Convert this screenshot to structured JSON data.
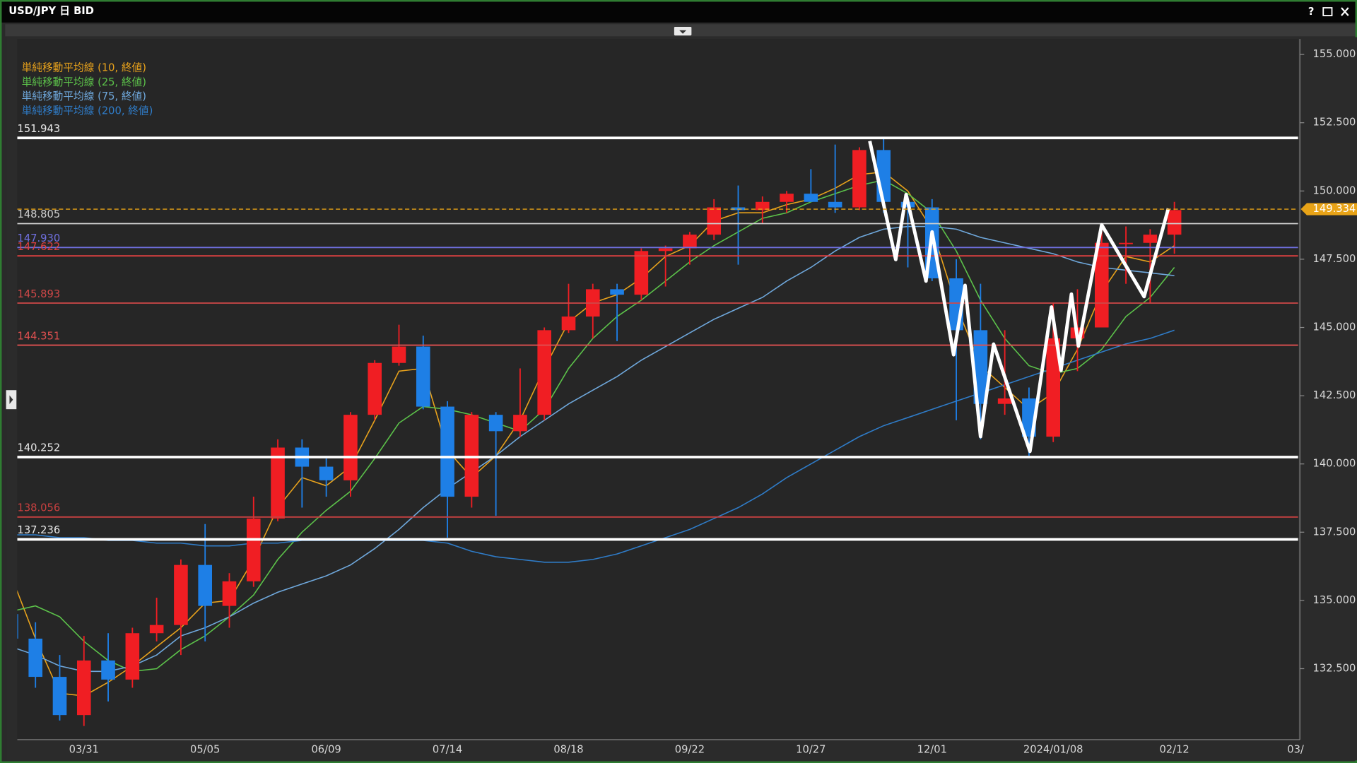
{
  "window": {
    "title": "USD/JPY 日 BID",
    "help": "?"
  },
  "chart_data": {
    "type": "candlestick",
    "categories": [
      null,
      null,
      null,
      "03/31",
      null,
      null,
      null,
      null,
      "05/05",
      null,
      null,
      null,
      null,
      "06/09",
      null,
      null,
      null,
      null,
      "07/14",
      null,
      null,
      null,
      null,
      "08/18",
      null,
      null,
      null,
      null,
      "09/22",
      null,
      null,
      null,
      null,
      "10/27",
      null,
      null,
      null,
      null,
      "12/01",
      null,
      null,
      null,
      null,
      "2024/01/08",
      null,
      null,
      null,
      null,
      "02/12",
      null,
      null,
      null,
      null,
      "03/"
    ],
    "open": [
      134.5,
      133.6,
      132.2,
      130.8,
      132.8,
      132.1,
      133.8,
      134.1,
      136.3,
      134.8,
      135.7,
      138.0,
      140.6,
      139.9,
      139.4,
      141.8,
      143.7,
      144.3,
      142.1,
      138.8,
      141.8,
      141.2,
      141.8,
      144.9,
      145.4,
      146.4,
      146.2,
      147.8,
      147.9,
      148.4,
      149.4,
      149.3,
      149.6,
      149.9,
      149.6,
      149.4,
      151.5,
      149.6,
      149.4,
      146.8,
      144.9,
      142.2,
      142.4,
      141.0,
      144.6,
      145.0,
      148.1,
      148.1,
      148.4,
      null,
      null,
      null,
      null,
      null
    ],
    "high": [
      135.0,
      134.2,
      133.0,
      133.7,
      133.8,
      134.0,
      135.1,
      136.5,
      137.8,
      136.0,
      138.8,
      140.9,
      140.9,
      140.2,
      141.9,
      143.8,
      145.1,
      144.7,
      142.3,
      141.9,
      141.9,
      143.5,
      145.0,
      146.6,
      146.6,
      146.6,
      147.9,
      148.0,
      148.5,
      149.7,
      150.2,
      149.8,
      150.0,
      150.8,
      151.7,
      151.6,
      151.9,
      149.8,
      149.7,
      147.5,
      146.6,
      144.9,
      142.8,
      145.9,
      146.4,
      148.8,
      148.7,
      148.6,
      149.6,
      null,
      null,
      null,
      null,
      null
    ],
    "low": [
      133.0,
      131.8,
      130.6,
      130.4,
      131.3,
      131.8,
      133.5,
      133.0,
      133.5,
      134.0,
      135.5,
      137.9,
      138.4,
      138.8,
      138.8,
      141.6,
      143.6,
      142.0,
      137.3,
      138.4,
      138.1,
      141.0,
      141.6,
      144.8,
      144.6,
      144.5,
      146.0,
      146.5,
      147.3,
      148.2,
      147.3,
      148.8,
      149.2,
      149.6,
      149.2,
      149.3,
      149.2,
      147.2,
      146.7,
      141.6,
      140.9,
      141.8,
      140.3,
      140.8,
      143.4,
      145.0,
      146.6,
      145.9,
      147.7,
      null,
      null,
      null,
      null,
      null
    ],
    "close": [
      133.6,
      132.2,
      130.8,
      132.8,
      132.1,
      133.8,
      134.1,
      136.3,
      134.8,
      135.7,
      138.0,
      140.6,
      139.9,
      139.4,
      141.8,
      143.7,
      144.3,
      142.1,
      138.8,
      141.8,
      141.2,
      141.8,
      144.9,
      145.4,
      146.4,
      146.2,
      147.8,
      147.9,
      148.4,
      149.4,
      149.3,
      149.6,
      149.9,
      149.6,
      149.4,
      151.5,
      149.6,
      149.4,
      146.8,
      144.9,
      142.2,
      142.4,
      141.0,
      144.6,
      145.0,
      148.1,
      148.1,
      148.4,
      149.3,
      null,
      null,
      null,
      null,
      null
    ],
    "up_color": "#f01e23",
    "down_color": "#1e7fe6",
    "series": [
      {
        "name": "単純移動平均線 (10, 終値)",
        "color": "#e8a21c",
        "values": [
          135.9,
          133.6,
          131.6,
          131.5,
          132.0,
          132.6,
          133.3,
          134.0,
          134.9,
          135.0,
          136.5,
          138.4,
          139.5,
          139.2,
          139.9,
          141.6,
          143.4,
          143.5,
          140.5,
          139.5,
          140.3,
          141.6,
          143.5,
          145.2,
          145.9,
          146.2,
          146.8,
          147.6,
          148.0,
          148.9,
          149.2,
          149.2,
          149.5,
          149.7,
          150.1,
          150.6,
          150.7,
          150.0,
          148.6,
          145.8,
          143.6,
          142.8,
          142.0,
          142.6,
          144.2,
          146.3,
          147.6,
          147.4,
          148.0,
          null,
          null,
          null,
          null,
          null
        ]
      },
      {
        "name": "単純移動平均線 (25, 終値)",
        "color": "#5cc24a",
        "values": [
          134.6,
          134.8,
          134.4,
          133.5,
          132.8,
          132.4,
          132.5,
          133.2,
          133.7,
          134.4,
          135.2,
          136.5,
          137.5,
          138.3,
          139.0,
          140.2,
          141.5,
          142.1,
          142.0,
          141.8,
          141.5,
          141.2,
          142.0,
          143.5,
          144.6,
          145.4,
          146.0,
          146.7,
          147.4,
          148.0,
          148.5,
          149.0,
          149.2,
          149.6,
          149.9,
          150.2,
          150.4,
          149.9,
          149.2,
          147.8,
          146.0,
          144.6,
          143.6,
          143.3,
          143.5,
          144.2,
          145.4,
          146.1,
          147.2,
          null,
          null,
          null,
          null,
          null
        ]
      },
      {
        "name": "単純移動平均線 (75, 終値)",
        "color": "#6fa8dc",
        "values": [
          133.3,
          133.0,
          132.6,
          132.4,
          132.4,
          132.6,
          133.0,
          133.7,
          134.0,
          134.4,
          134.9,
          135.3,
          135.6,
          135.9,
          136.3,
          136.9,
          137.6,
          138.4,
          139.1,
          139.7,
          140.3,
          141.0,
          141.6,
          142.2,
          142.7,
          143.2,
          143.8,
          144.3,
          144.8,
          145.3,
          145.7,
          146.1,
          146.7,
          147.2,
          147.8,
          148.3,
          148.6,
          148.7,
          148.7,
          148.6,
          148.3,
          148.1,
          147.9,
          147.7,
          147.4,
          147.2,
          147.1,
          147.0,
          146.9,
          null,
          null,
          null,
          null,
          null
        ]
      },
      {
        "name": "単純移動平均線 (200, 終値)",
        "color": "#2f7cc8",
        "values": [
          137.4,
          137.4,
          137.3,
          137.3,
          137.2,
          137.2,
          137.1,
          137.1,
          137.0,
          137.0,
          137.1,
          137.1,
          137.2,
          137.2,
          137.2,
          137.2,
          137.2,
          137.2,
          137.1,
          136.8,
          136.6,
          136.5,
          136.4,
          136.4,
          136.5,
          136.7,
          137.0,
          137.3,
          137.6,
          138.0,
          138.4,
          138.9,
          139.5,
          140.0,
          140.5,
          141.0,
          141.4,
          141.7,
          142.0,
          142.3,
          142.6,
          142.9,
          143.2,
          143.5,
          143.8,
          144.1,
          144.4,
          144.6,
          144.9,
          null,
          null,
          null,
          null,
          null
        ]
      }
    ],
    "levels": [
      {
        "value": 151.943,
        "color": "#ffffff"
      },
      {
        "value": 148.805,
        "color": "#d0d0d0"
      },
      {
        "value": 147.93,
        "label": "147.930",
        "color": "#7070e0"
      },
      {
        "value": 147.622,
        "color": "#e04040"
      },
      {
        "value": 145.893,
        "color": "#d04848"
      },
      {
        "value": 144.351,
        "color": "#e05050"
      },
      {
        "value": 140.252,
        "color": "#ffffff"
      },
      {
        "value": 138.056,
        "color": "#c84040"
      },
      {
        "value": 137.236,
        "color": "#ffffff"
      }
    ],
    "last_price": 149.334,
    "last_price_color": "#e8a317",
    "drawing": {
      "color": "#ffffff",
      "x": [
        35.43,
        36.5,
        36.93,
        37.75,
        38.0,
        38.89,
        39.36,
        40.0,
        40.54,
        42.04,
        42.93,
        43.32,
        43.75,
        44.04,
        45.0,
        46.75,
        47.75
      ],
      "y": [
        151.83,
        147.49,
        149.87,
        146.7,
        148.5,
        144.0,
        146.54,
        141.0,
        144.39,
        140.46,
        145.75,
        143.43,
        146.22,
        144.32,
        148.76,
        146.13,
        149.36
      ]
    },
    "ylim": [
      129.9,
      155.57
    ],
    "yticks": [
      {
        "value": 132.5,
        "label": "132.500"
      },
      {
        "value": 135,
        "label": "135.000"
      },
      {
        "value": 137.5,
        "label": "137.500"
      },
      {
        "value": 140,
        "label": "140.000"
      },
      {
        "value": 142.5,
        "label": "142.500"
      },
      {
        "value": 145,
        "label": "145.000"
      },
      {
        "value": 147.5,
        "label": "147.500"
      },
      {
        "value": 150,
        "label": "150.000"
      },
      {
        "value": 152.5,
        "label": "152.500"
      },
      {
        "value": 155,
        "label": "155.000"
      }
    ],
    "grid": false
  }
}
